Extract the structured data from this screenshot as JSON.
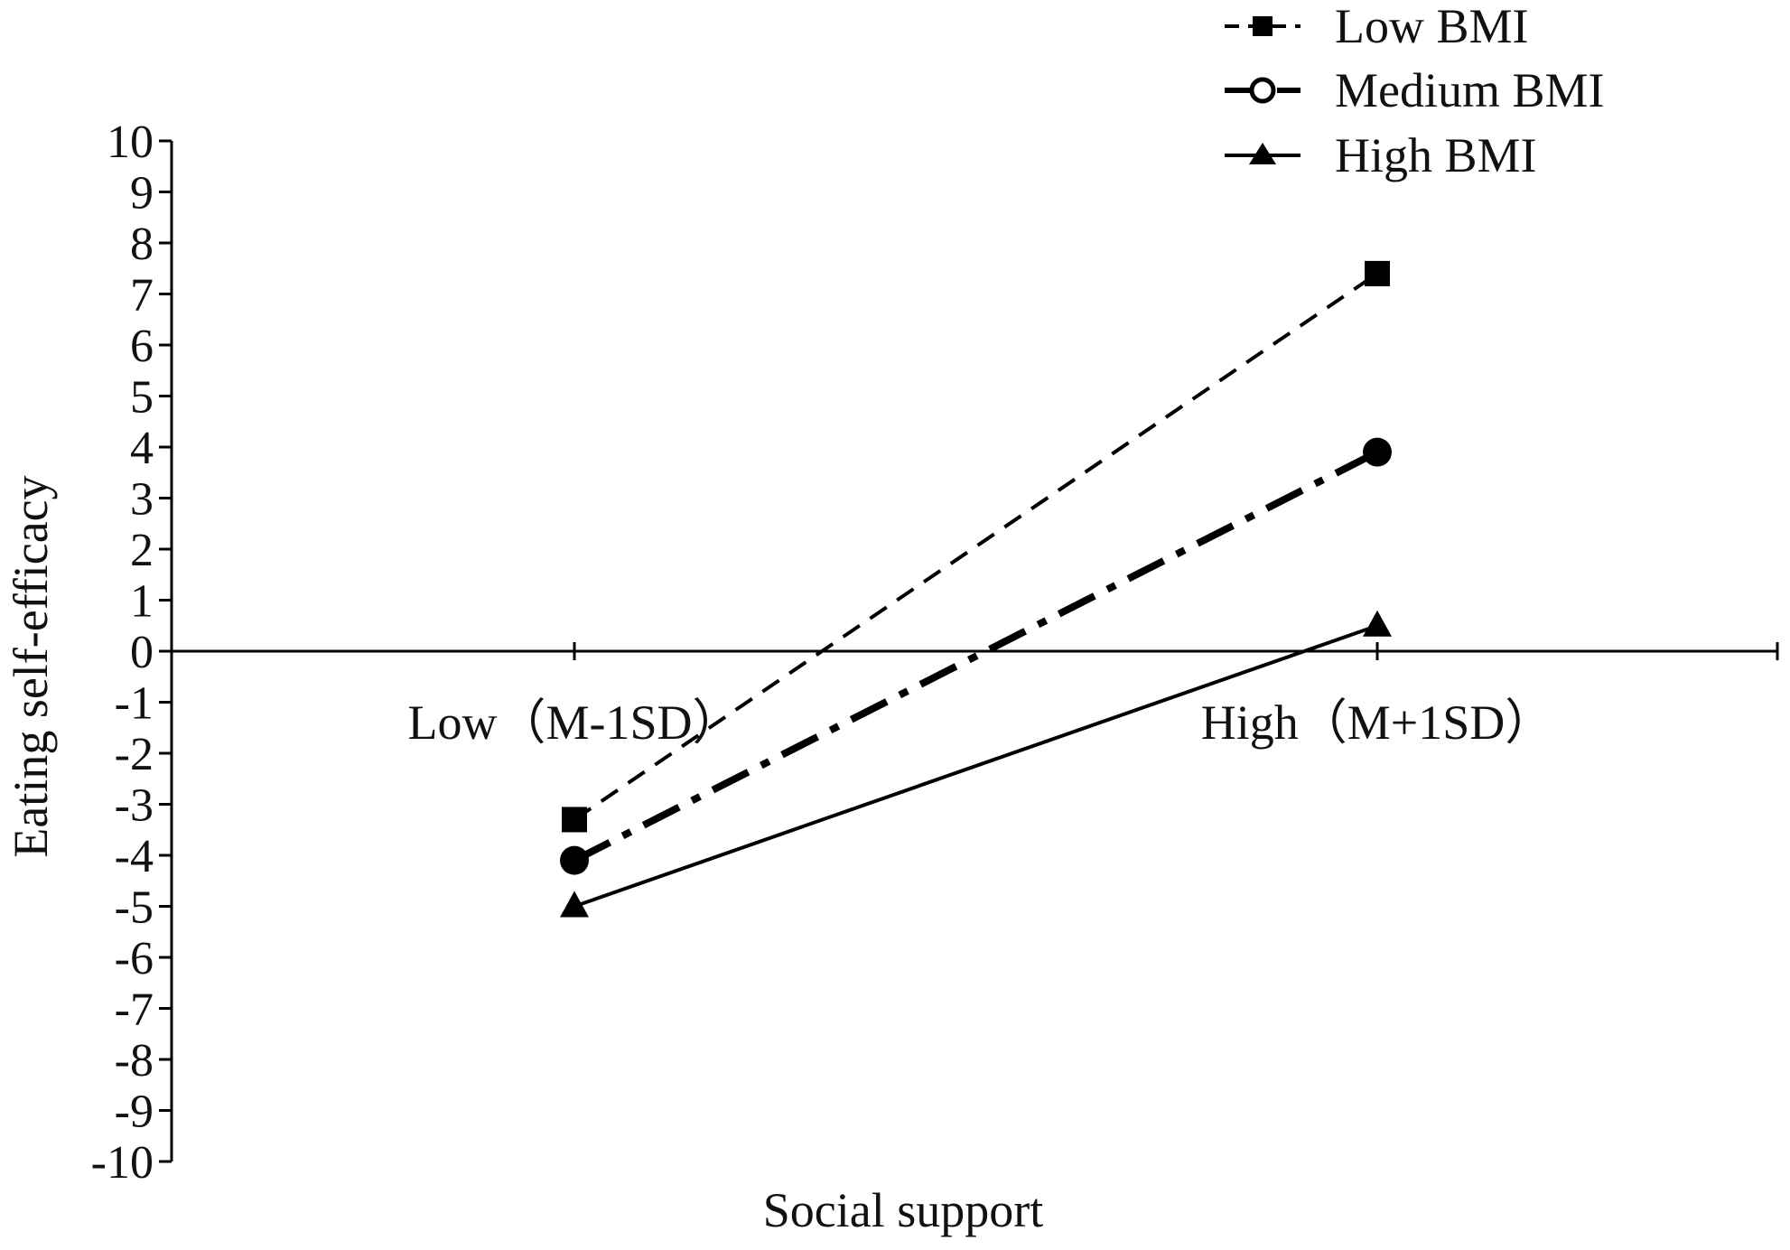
{
  "chart_data": {
    "type": "line",
    "xlabel": "Social support",
    "ylabel": "Eating self-efficacy",
    "categories": [
      "Low（M-1SD）",
      "High（M+1SD）"
    ],
    "ylim": [
      -10,
      10
    ],
    "yticks": [
      10,
      9,
      8,
      7,
      6,
      5,
      4,
      3,
      2,
      1,
      0,
      -1,
      -2,
      -3,
      -4,
      -5,
      -6,
      -7,
      -8,
      -9,
      -10
    ],
    "grid": false,
    "legend_position": "top-right",
    "series": [
      {
        "name": "Low BMI",
        "values": [
          -3.3,
          7.4
        ],
        "marker": "square",
        "line_style": "dashed",
        "color": "#000000"
      },
      {
        "name": "Medium BMI",
        "values": [
          -4.1,
          3.9
        ],
        "marker": "circle",
        "line_style": "dash-dot",
        "color": "#000000"
      },
      {
        "name": "High BMI",
        "values": [
          -5.0,
          0.5
        ],
        "marker": "triangle",
        "line_style": "solid",
        "color": "#000000"
      }
    ]
  }
}
